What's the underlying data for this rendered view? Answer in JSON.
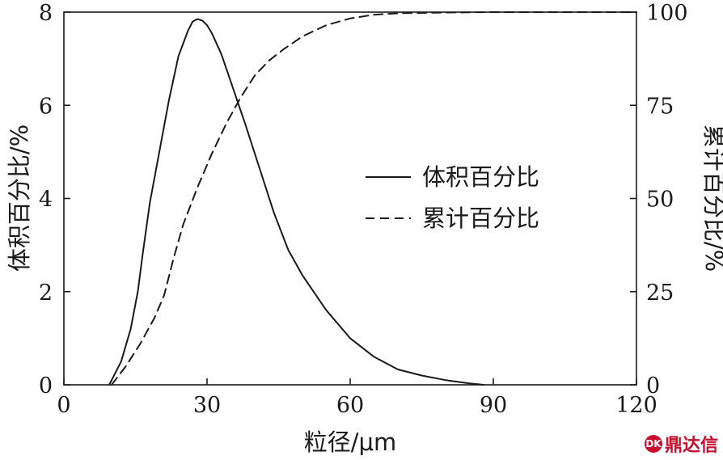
{
  "chart_data": {
    "type": "line",
    "xlabel": "粒径/μm",
    "ylabel_left": "体积百分比/%",
    "ylabel_right": "累计百分比/%",
    "x_ticks": [
      0,
      30,
      60,
      90,
      120
    ],
    "y_left_ticks": [
      0,
      2,
      4,
      6,
      8
    ],
    "y_right_ticks": [
      0,
      25,
      50,
      75,
      100
    ],
    "xlim": [
      0,
      120
    ],
    "ylim_left": [
      0,
      8
    ],
    "ylim_right": [
      0,
      100
    ],
    "grid": false,
    "legend_position": "center-right",
    "series": [
      {
        "name": "体积百分比",
        "axis": "left",
        "style": "solid",
        "x": [
          9.5,
          12,
          14,
          15.5,
          16.5,
          18,
          20,
          22,
          24,
          26,
          27,
          28,
          29,
          30,
          31,
          33,
          35,
          38,
          41,
          44,
          47,
          50,
          55,
          60,
          65,
          70,
          75,
          80,
          85,
          88
        ],
        "y": [
          0,
          0.5,
          1.2,
          2.0,
          2.8,
          3.9,
          5.0,
          6.1,
          7.05,
          7.6,
          7.8,
          7.85,
          7.82,
          7.72,
          7.55,
          7.1,
          6.5,
          5.6,
          4.65,
          3.7,
          2.9,
          2.35,
          1.6,
          1.0,
          0.6,
          0.33,
          0.2,
          0.1,
          0.03,
          0
        ]
      },
      {
        "name": "累计百分比",
        "axis": "right",
        "style": "dashed",
        "x": [
          10,
          13,
          16,
          19,
          21,
          23,
          25,
          28,
          31,
          34,
          37,
          40,
          43,
          46,
          50,
          55,
          60,
          65,
          70,
          80,
          90,
          100,
          110,
          120
        ],
        "y": [
          0,
          5,
          11,
          18,
          24,
          34,
          43,
          53,
          62,
          70,
          77,
          83,
          87,
          90,
          93.5,
          96.5,
          98.3,
          99.3,
          99.7,
          99.9,
          100,
          100,
          100,
          100
        ]
      }
    ]
  },
  "watermark": {
    "text": "鼎达信",
    "badge": "DK",
    "color": "#c8102e"
  }
}
